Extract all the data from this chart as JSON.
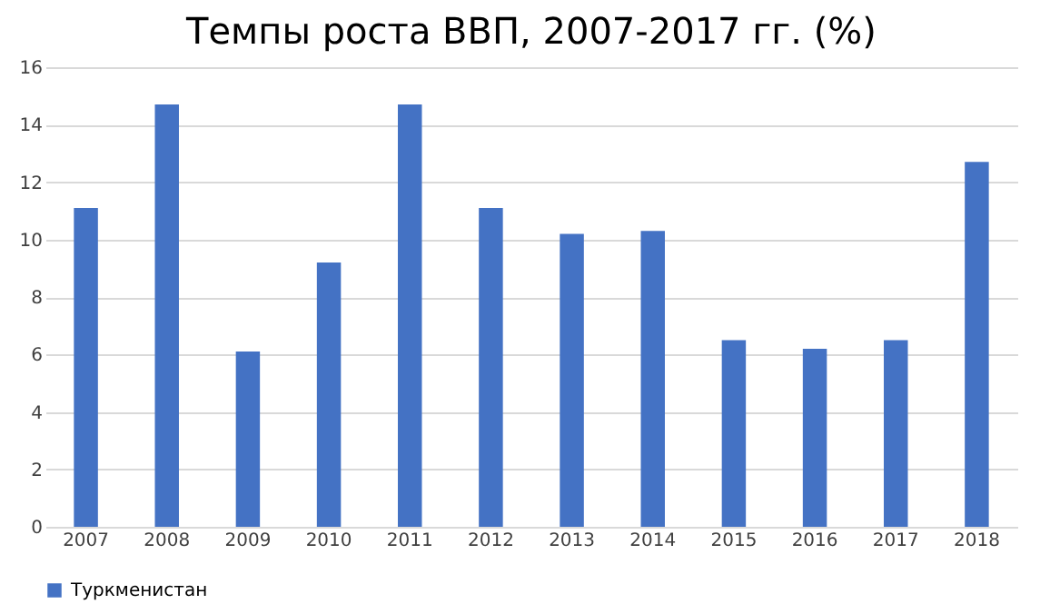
{
  "chart_data": {
    "type": "bar",
    "title": "Темпы роста ВВП, 2007-2017 гг. (%)",
    "categories": [
      "2007",
      "2008",
      "2009",
      "2010",
      "2011",
      "2012",
      "2013",
      "2014",
      "2015",
      "2016",
      "2017",
      "2018"
    ],
    "series": [
      {
        "name": "Туркменистан",
        "color": "#4472c4",
        "values": [
          11.1,
          14.7,
          6.1,
          9.2,
          14.7,
          11.1,
          10.2,
          10.3,
          6.5,
          6.2,
          6.5,
          12.7
        ]
      }
    ],
    "ylim": [
      0,
      16
    ],
    "yticks": [
      0,
      2,
      4,
      6,
      8,
      10,
      12,
      14,
      16
    ],
    "grid": "y",
    "legend": "bottom"
  }
}
